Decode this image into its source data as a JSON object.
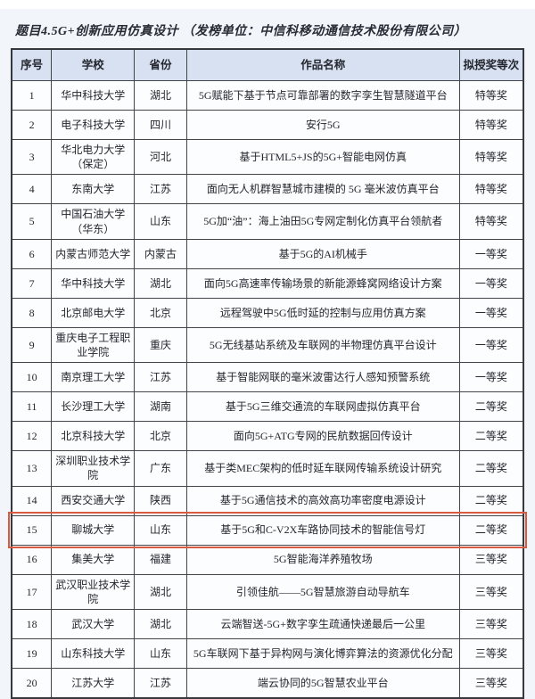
{
  "page": {
    "title": "题目4.5G+创新应用仿真设计 （发榜单位：中信科移动通信技术股份有限公司）"
  },
  "table": {
    "headers": [
      "序号",
      "学校",
      "省份",
      "作品名称",
      "拟授奖等次"
    ],
    "rows": [
      {
        "no": "1",
        "school": "华中科技大学",
        "province": "湖北",
        "work": "5G赋能下基于节点可靠部署的数字孪生智慧隧道平台",
        "award": "特等奖",
        "highlighted": false
      },
      {
        "no": "2",
        "school": "电子科技大学",
        "province": "四川",
        "work": "安行5G",
        "award": "特等奖",
        "highlighted": false
      },
      {
        "no": "3",
        "school": "华北电力大学（保定）",
        "province": "河北",
        "work": "基于HTML5+JS的5G+智能电网仿真",
        "award": "特等奖",
        "highlighted": false
      },
      {
        "no": "4",
        "school": "东南大学",
        "province": "江苏",
        "work": "面向无人机群智慧城市建模的 5G 毫米波仿真平台",
        "award": "特等奖",
        "highlighted": false
      },
      {
        "no": "5",
        "school": "中国石油大学（华东）",
        "province": "山东",
        "work": "5G加“油”：海上油田5G专网定制化仿真平台领航者",
        "award": "特等奖",
        "highlighted": false
      },
      {
        "no": "6",
        "school": "内蒙古师范大学",
        "province": "内蒙古",
        "work": "基于5G的AI机械手",
        "award": "一等奖",
        "highlighted": false
      },
      {
        "no": "7",
        "school": "华中科技大学",
        "province": "湖北",
        "work": "面向5G高速率传输场景的新能源蜂窝网络设计方案",
        "award": "一等奖",
        "highlighted": false
      },
      {
        "no": "8",
        "school": "北京邮电大学",
        "province": "北京",
        "work": "远程驾驶中5G低时延的控制与应用仿真方案",
        "award": "一等奖",
        "highlighted": false
      },
      {
        "no": "9",
        "school": "重庆电子工程职业学院",
        "province": "重庆",
        "work": "5G无线基站系统及车联网的半物理仿真平台设计",
        "award": "一等奖",
        "highlighted": false
      },
      {
        "no": "10",
        "school": "南京理工大学",
        "province": "江苏",
        "work": "基于智能网联的毫米波雷达行人感知预警系统",
        "award": "一等奖",
        "highlighted": false
      },
      {
        "no": "11",
        "school": "长沙理工大学",
        "province": "湖南",
        "work": "基于5G三维交通流的车联网虚拟仿真平台",
        "award": "二等奖",
        "highlighted": false
      },
      {
        "no": "12",
        "school": "北京科技大学",
        "province": "北京",
        "work": "面向5G+ATG专网的民航数据回传设计",
        "award": "二等奖",
        "highlighted": false
      },
      {
        "no": "13",
        "school": "深圳职业技术学院",
        "province": "广东",
        "work": "基于类MEC架构的低时延车联网传输系统设计研究",
        "award": "二等奖",
        "highlighted": false
      },
      {
        "no": "14",
        "school": "西安交通大学",
        "province": "陕西",
        "work": "基于5G通信技术的高效高功率密度电源设计",
        "award": "二等奖",
        "highlighted": false
      },
      {
        "no": "15",
        "school": "聊城大学",
        "province": "山东",
        "work": "基于5G和C-V2X车路协同技术的智能信号灯",
        "award": "二等奖",
        "highlighted": true
      },
      {
        "no": "16",
        "school": "集美大学",
        "province": "福建",
        "work": "5G智能海洋养殖牧场",
        "award": "三等奖",
        "highlighted": false
      },
      {
        "no": "17",
        "school": "武汉职业技术学院",
        "province": "湖北",
        "work": "引领佳航——5G智慧旅游自动导航车",
        "award": "三等奖",
        "highlighted": false
      },
      {
        "no": "18",
        "school": "武汉大学",
        "province": "湖北",
        "work": "云端智送-5G+数字孪生疏通快递最后一公里",
        "award": "三等奖",
        "highlighted": false
      },
      {
        "no": "19",
        "school": "山东科技大学",
        "province": "山东",
        "work": "5G车联网下基于异构网与演化博弈算法的资源优化分配",
        "award": "三等奖",
        "highlighted": false
      },
      {
        "no": "20",
        "school": "江苏大学",
        "province": "江苏",
        "work": "端云协同的5G智慧农业平台",
        "award": "三等奖",
        "highlighted": false
      }
    ]
  },
  "colors": {
    "page_bg": "#f2f5f9",
    "header_bg": "#d8e1f1",
    "table_border": "#36383d",
    "cell_bg": "#fcfdfe",
    "highlight_border": "#d85a41",
    "text": "#23262e"
  }
}
